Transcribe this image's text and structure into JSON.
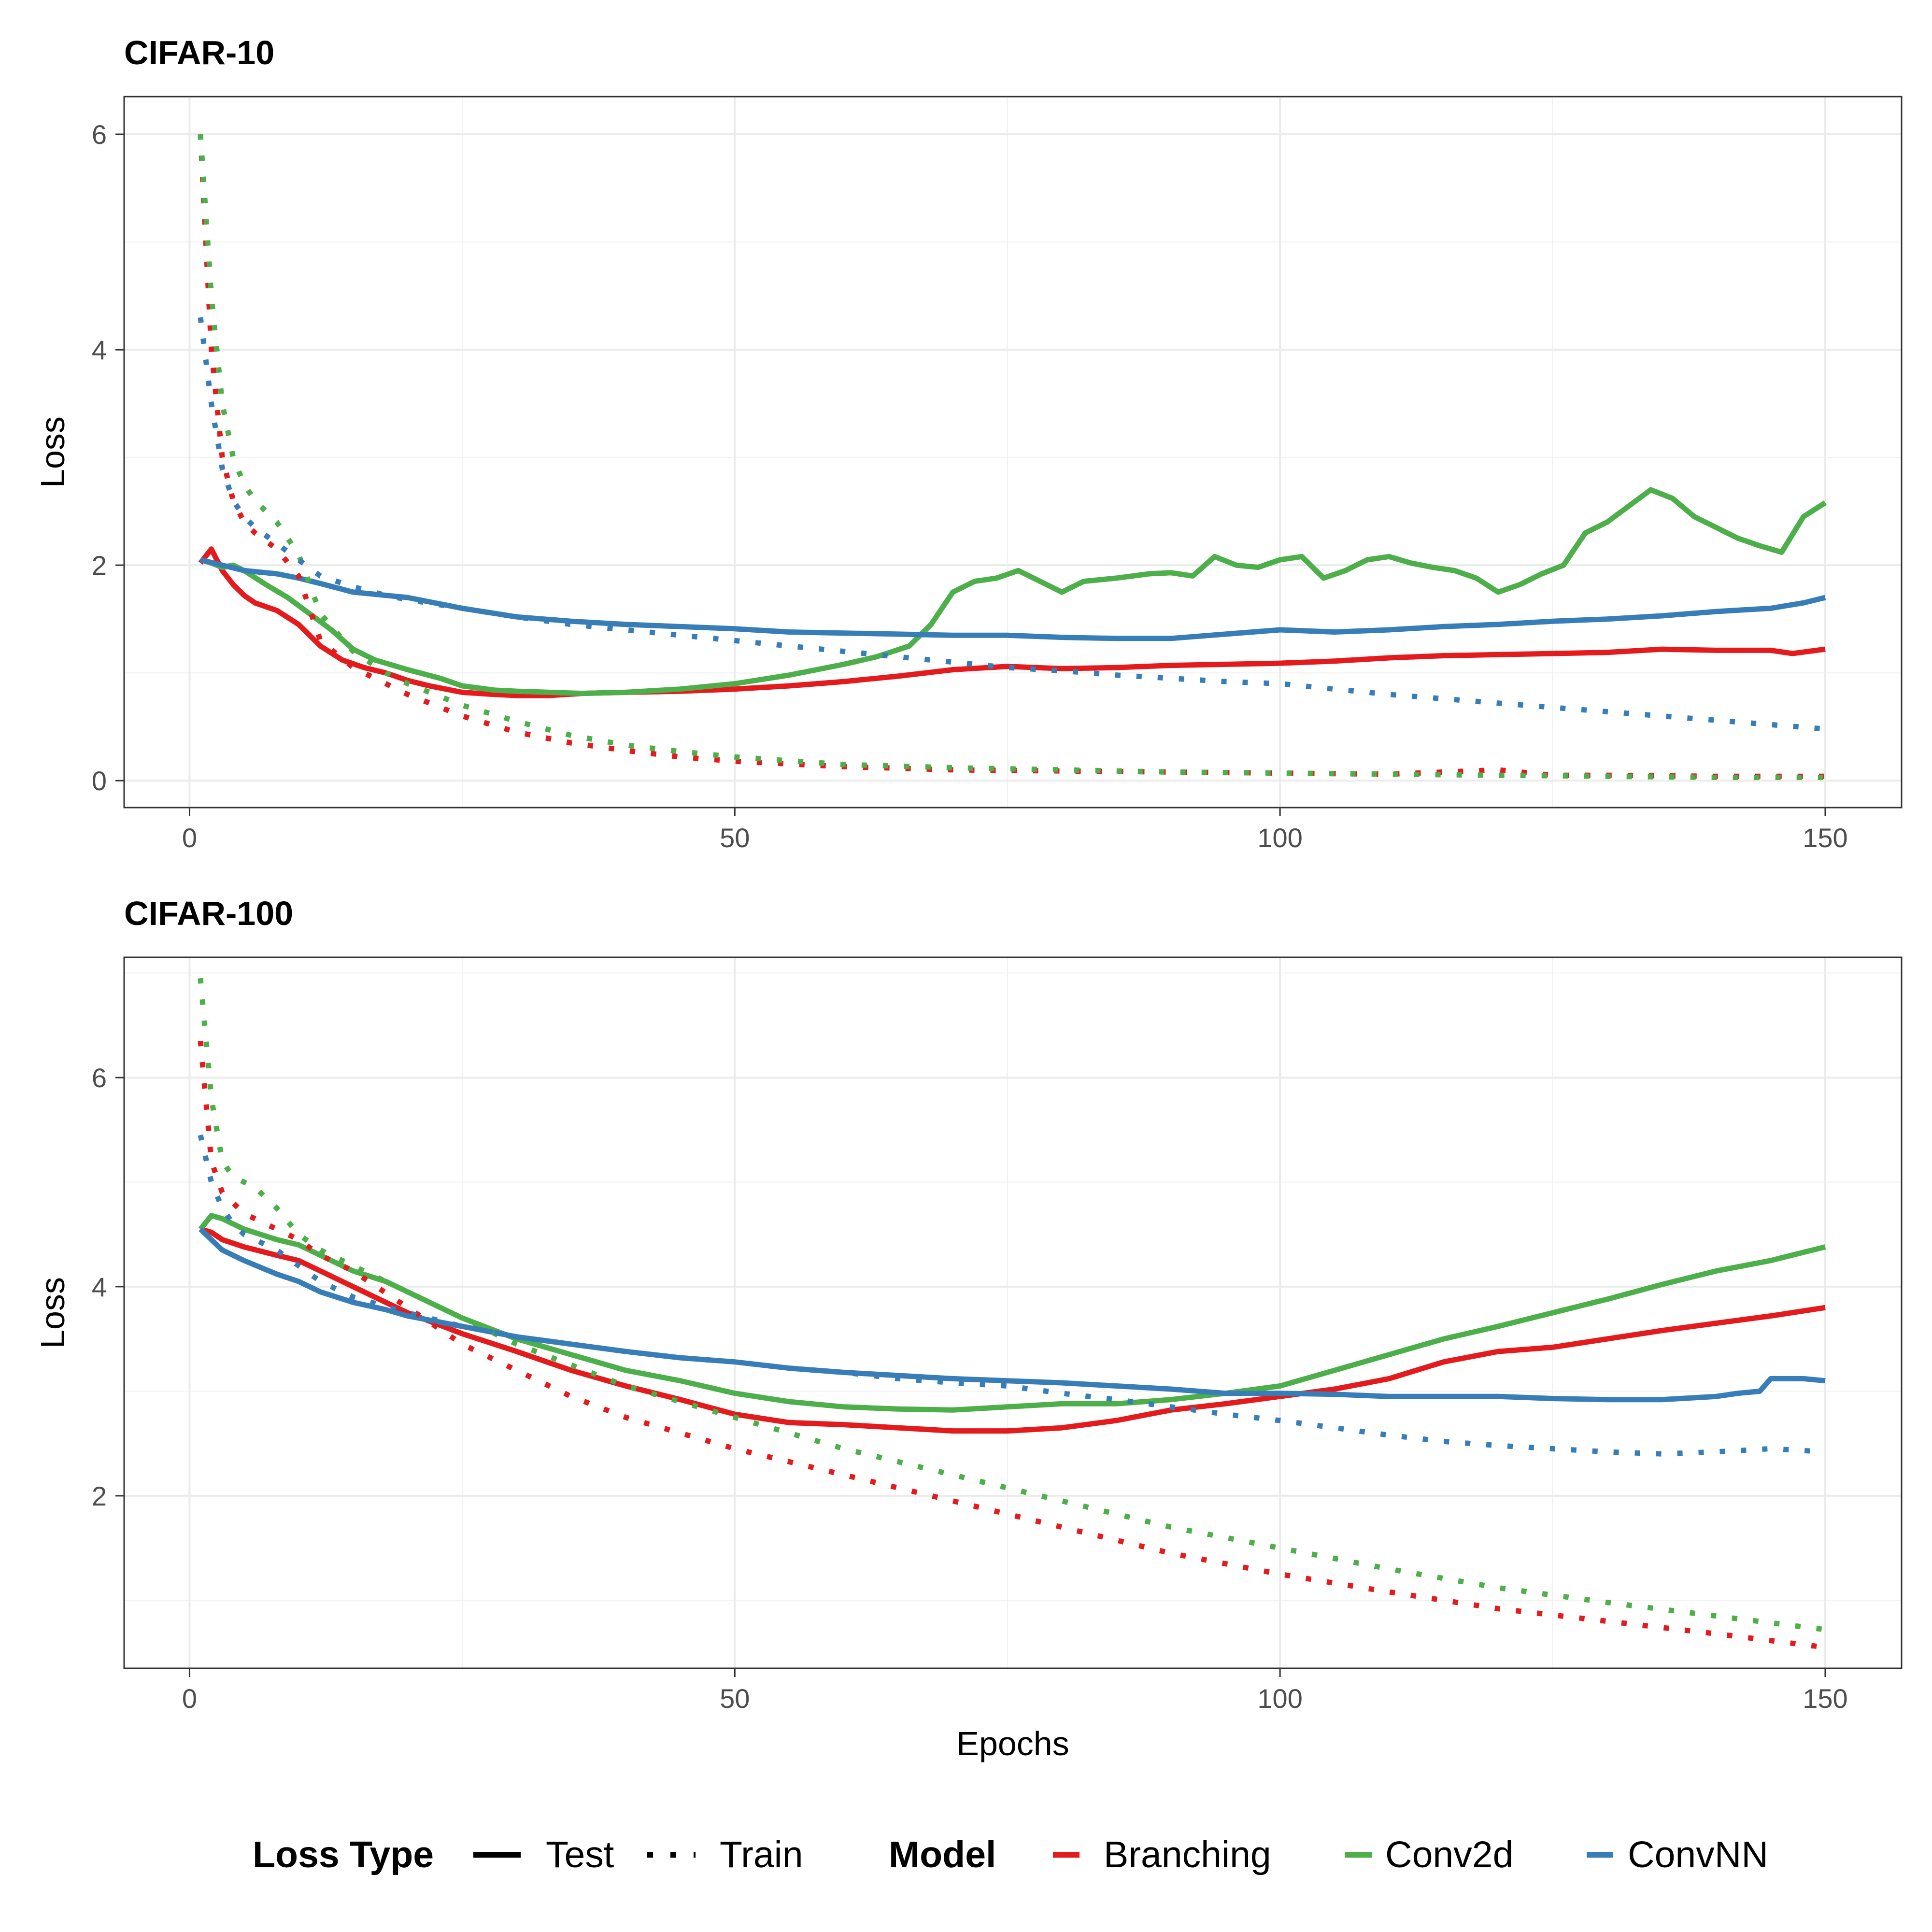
{
  "chart_data": [
    {
      "type": "line",
      "title": "CIFAR-10",
      "xlabel": "",
      "ylabel": "Loss",
      "xlim": [
        -6,
        157
      ],
      "ylim": [
        -0.25,
        6.35
      ],
      "xticks": [
        0,
        50,
        100,
        150
      ],
      "yticks": [
        0,
        2,
        4,
        6
      ],
      "grid": true,
      "series": [
        {
          "name": "Branching",
          "loss_type": "Test",
          "color": "#E41A1C",
          "x": [
            1,
            2,
            3,
            4,
            5,
            6,
            8,
            10,
            12,
            14,
            16,
            18,
            20,
            22,
            25,
            28,
            30,
            33,
            36,
            40,
            45,
            50,
            55,
            60,
            65,
            70,
            75,
            80,
            85,
            90,
            95,
            100,
            105,
            110,
            115,
            120,
            125,
            130,
            135,
            140,
            145,
            147,
            150
          ],
          "y": [
            2.02,
            2.15,
            1.95,
            1.82,
            1.72,
            1.65,
            1.58,
            1.45,
            1.25,
            1.12,
            1.05,
            1.0,
            0.93,
            0.88,
            0.82,
            0.8,
            0.79,
            0.79,
            0.81,
            0.82,
            0.83,
            0.85,
            0.88,
            0.92,
            0.97,
            1.03,
            1.06,
            1.04,
            1.05,
            1.07,
            1.08,
            1.09,
            1.11,
            1.14,
            1.16,
            1.17,
            1.18,
            1.19,
            1.22,
            1.21,
            1.21,
            1.18,
            1.22
          ]
        },
        {
          "name": "Conv2d",
          "loss_type": "Test",
          "color": "#4DAF4A",
          "x": [
            1,
            2,
            3,
            4,
            5,
            7,
            9,
            11,
            13,
            15,
            17,
            20,
            23,
            25,
            28,
            30,
            33,
            36,
            40,
            45,
            50,
            55,
            60,
            63,
            66,
            68,
            70,
            72,
            74,
            76,
            78,
            80,
            82,
            85,
            88,
            90,
            92,
            94,
            96,
            98,
            100,
            102,
            104,
            106,
            108,
            110,
            112,
            114,
            116,
            118,
            120,
            122,
            124,
            126,
            128,
            130,
            132,
            134,
            136,
            138,
            140,
            142,
            144,
            146,
            148,
            150
          ],
          "y": [
            2.05,
            2.02,
            1.98,
            2.0,
            1.95,
            1.82,
            1.7,
            1.55,
            1.4,
            1.22,
            1.12,
            1.03,
            0.95,
            0.88,
            0.84,
            0.83,
            0.82,
            0.81,
            0.82,
            0.85,
            0.9,
            0.98,
            1.08,
            1.15,
            1.25,
            1.45,
            1.75,
            1.85,
            1.88,
            1.95,
            1.85,
            1.75,
            1.85,
            1.88,
            1.92,
            1.93,
            1.9,
            2.08,
            2.0,
            1.98,
            2.05,
            2.08,
            1.88,
            1.95,
            2.05,
            2.08,
            2.02,
            1.98,
            1.95,
            1.88,
            1.75,
            1.82,
            1.92,
            2.0,
            2.3,
            2.4,
            2.55,
            2.7,
            2.62,
            2.45,
            2.35,
            2.25,
            2.18,
            2.12,
            2.45,
            2.58
          ]
        },
        {
          "name": "ConvNN",
          "loss_type": "Test",
          "color": "#377EB8",
          "x": [
            1,
            3,
            5,
            8,
            10,
            12,
            15,
            18,
            20,
            25,
            30,
            35,
            40,
            45,
            50,
            55,
            60,
            65,
            70,
            75,
            80,
            85,
            90,
            95,
            100,
            105,
            110,
            115,
            120,
            125,
            130,
            135,
            140,
            145,
            148,
            150
          ],
          "y": [
            2.05,
            2.0,
            1.95,
            1.92,
            1.88,
            1.83,
            1.75,
            1.72,
            1.7,
            1.6,
            1.52,
            1.48,
            1.45,
            1.43,
            1.41,
            1.38,
            1.37,
            1.36,
            1.35,
            1.35,
            1.33,
            1.32,
            1.32,
            1.36,
            1.4,
            1.38,
            1.4,
            1.43,
            1.45,
            1.48,
            1.5,
            1.53,
            1.57,
            1.6,
            1.65,
            1.7
          ]
        },
        {
          "name": "Branching",
          "loss_type": "Train",
          "color": "#E41A1C",
          "x": [
            1,
            2,
            3,
            4,
            5,
            6,
            8,
            10,
            12,
            15,
            18,
            20,
            25,
            30,
            35,
            40,
            45,
            50,
            60,
            70,
            80,
            90,
            100,
            110,
            115,
            120,
            125,
            130,
            140,
            150
          ],
          "y": [
            6.0,
            4.0,
            3.0,
            2.6,
            2.4,
            2.3,
            2.15,
            1.9,
            1.3,
            1.05,
            0.9,
            0.8,
            0.6,
            0.45,
            0.35,
            0.28,
            0.22,
            0.18,
            0.13,
            0.1,
            0.09,
            0.08,
            0.07,
            0.06,
            0.08,
            0.1,
            0.05,
            0.05,
            0.04,
            0.04
          ]
        },
        {
          "name": "Conv2d",
          "loss_type": "Train",
          "color": "#4DAF4A",
          "x": [
            1,
            2,
            3,
            4,
            5,
            6,
            8,
            10,
            12,
            15,
            18,
            20,
            25,
            30,
            35,
            40,
            45,
            50,
            60,
            70,
            80,
            90,
            100,
            110,
            120,
            130,
            140,
            150
          ],
          "y": [
            6.0,
            4.5,
            3.5,
            3.0,
            2.75,
            2.6,
            2.4,
            2.1,
            1.55,
            1.2,
            1.0,
            0.9,
            0.7,
            0.55,
            0.42,
            0.33,
            0.27,
            0.22,
            0.15,
            0.12,
            0.1,
            0.08,
            0.07,
            0.06,
            0.05,
            0.04,
            0.03,
            0.03
          ]
        },
        {
          "name": "ConvNN",
          "loss_type": "Train",
          "color": "#377EB8",
          "x": [
            1,
            2,
            3,
            4,
            5,
            6,
            8,
            10,
            12,
            15,
            18,
            20,
            25,
            30,
            35,
            40,
            45,
            50,
            55,
            60,
            65,
            70,
            75,
            80,
            85,
            90,
            95,
            100,
            105,
            110,
            115,
            120,
            125,
            130,
            135,
            140,
            145,
            150
          ],
          "y": [
            4.3,
            3.5,
            2.9,
            2.6,
            2.45,
            2.35,
            2.2,
            2.05,
            1.9,
            1.8,
            1.72,
            1.68,
            1.6,
            1.52,
            1.45,
            1.4,
            1.35,
            1.3,
            1.25,
            1.2,
            1.15,
            1.1,
            1.05,
            1.02,
            0.98,
            0.95,
            0.92,
            0.9,
            0.85,
            0.8,
            0.76,
            0.72,
            0.68,
            0.64,
            0.6,
            0.56,
            0.52,
            0.48
          ]
        }
      ]
    },
    {
      "type": "line",
      "title": "CIFAR-100",
      "xlabel": "Epochs",
      "ylabel": "Loss",
      "xlim": [
        -6,
        157
      ],
      "ylim": [
        0.35,
        7.15
      ],
      "xticks": [
        0,
        50,
        100,
        150
      ],
      "yticks": [
        2,
        4,
        6
      ],
      "grid": true,
      "series": [
        {
          "name": "Branching",
          "loss_type": "Test",
          "color": "#E41A1C",
          "x": [
            1,
            2,
            3,
            5,
            8,
            10,
            12,
            15,
            18,
            20,
            25,
            30,
            35,
            40,
            45,
            50,
            55,
            60,
            65,
            70,
            75,
            80,
            85,
            90,
            95,
            100,
            105,
            110,
            115,
            120,
            125,
            130,
            135,
            140,
            145,
            150
          ],
          "y": [
            4.55,
            4.52,
            4.45,
            4.38,
            4.3,
            4.25,
            4.15,
            4.0,
            3.85,
            3.75,
            3.55,
            3.38,
            3.2,
            3.05,
            2.92,
            2.78,
            2.7,
            2.68,
            2.65,
            2.62,
            2.62,
            2.65,
            2.72,
            2.82,
            2.88,
            2.95,
            3.02,
            3.12,
            3.28,
            3.38,
            3.42,
            3.5,
            3.58,
            3.65,
            3.72,
            3.8
          ]
        },
        {
          "name": "Conv2d",
          "loss_type": "Test",
          "color": "#4DAF4A",
          "x": [
            1,
            2,
            3,
            5,
            8,
            10,
            12,
            15,
            18,
            20,
            25,
            30,
            35,
            40,
            45,
            50,
            55,
            60,
            65,
            70,
            75,
            80,
            85,
            90,
            95,
            100,
            105,
            110,
            115,
            120,
            125,
            130,
            135,
            140,
            145,
            150
          ],
          "y": [
            4.55,
            4.68,
            4.65,
            4.55,
            4.45,
            4.4,
            4.3,
            4.15,
            4.05,
            3.95,
            3.7,
            3.5,
            3.35,
            3.2,
            3.1,
            2.98,
            2.9,
            2.85,
            2.83,
            2.82,
            2.85,
            2.88,
            2.88,
            2.92,
            2.98,
            3.05,
            3.2,
            3.35,
            3.5,
            3.62,
            3.75,
            3.88,
            4.02,
            4.15,
            4.25,
            4.38
          ]
        },
        {
          "name": "ConvNN",
          "loss_type": "Test",
          "color": "#377EB8",
          "x": [
            1,
            2,
            3,
            5,
            8,
            10,
            12,
            15,
            18,
            20,
            25,
            30,
            35,
            40,
            45,
            50,
            55,
            60,
            65,
            70,
            75,
            80,
            85,
            90,
            95,
            100,
            105,
            110,
            115,
            120,
            125,
            130,
            135,
            140,
            142,
            144,
            145,
            146,
            148,
            150
          ],
          "y": [
            4.55,
            4.45,
            4.35,
            4.25,
            4.12,
            4.05,
            3.95,
            3.85,
            3.78,
            3.72,
            3.62,
            3.52,
            3.45,
            3.38,
            3.32,
            3.28,
            3.22,
            3.18,
            3.15,
            3.12,
            3.1,
            3.08,
            3.05,
            3.02,
            2.98,
            2.98,
            2.97,
            2.95,
            2.95,
            2.95,
            2.93,
            2.92,
            2.92,
            2.95,
            2.98,
            3.0,
            3.12,
            3.12,
            3.12,
            3.1
          ]
        },
        {
          "name": "Branching",
          "loss_type": "Train",
          "color": "#E41A1C",
          "x": [
            1,
            2,
            3,
            4,
            5,
            6,
            8,
            10,
            12,
            15,
            20,
            25,
            30,
            35,
            40,
            50,
            60,
            70,
            80,
            90,
            100,
            110,
            120,
            130,
            140,
            150
          ],
          "y": [
            6.35,
            5.2,
            4.9,
            4.8,
            4.7,
            4.65,
            4.55,
            4.45,
            4.3,
            4.15,
            3.8,
            3.45,
            3.2,
            2.95,
            2.75,
            2.45,
            2.2,
            1.95,
            1.7,
            1.45,
            1.25,
            1.08,
            0.92,
            0.8,
            0.68,
            0.55
          ]
        },
        {
          "name": "Conv2d",
          "loss_type": "Train",
          "color": "#4DAF4A",
          "x": [
            1,
            2,
            3,
            4,
            5,
            6,
            8,
            10,
            12,
            15,
            20,
            25,
            30,
            35,
            40,
            50,
            60,
            70,
            80,
            90,
            100,
            110,
            120,
            130,
            140,
            150
          ],
          "y": [
            6.95,
            5.8,
            5.2,
            5.05,
            5.0,
            4.95,
            4.75,
            4.5,
            4.35,
            4.2,
            3.95,
            3.7,
            3.45,
            3.25,
            3.05,
            2.75,
            2.45,
            2.2,
            1.95,
            1.7,
            1.5,
            1.3,
            1.12,
            0.98,
            0.85,
            0.72
          ]
        },
        {
          "name": "ConvNN",
          "loss_type": "Train",
          "color": "#377EB8",
          "x": [
            1,
            2,
            3,
            4,
            5,
            6,
            8,
            10,
            12,
            15,
            20,
            25,
            30,
            35,
            40,
            45,
            50,
            55,
            60,
            65,
            70,
            75,
            80,
            85,
            90,
            95,
            100,
            105,
            110,
            115,
            120,
            125,
            130,
            135,
            140,
            145,
            150
          ],
          "y": [
            5.45,
            5.0,
            4.75,
            4.6,
            4.5,
            4.45,
            4.35,
            4.2,
            4.05,
            3.9,
            3.75,
            3.62,
            3.52,
            3.45,
            3.38,
            3.32,
            3.28,
            3.22,
            3.18,
            3.12,
            3.08,
            3.05,
            2.98,
            2.92,
            2.85,
            2.78,
            2.72,
            2.65,
            2.58,
            2.52,
            2.48,
            2.45,
            2.42,
            2.4,
            2.42,
            2.45,
            2.42
          ]
        }
      ]
    }
  ],
  "legend": {
    "placement": "bottom",
    "loss_type": {
      "title": "Loss Type",
      "items": [
        {
          "label": "Test"
        },
        {
          "label": "Train"
        }
      ]
    },
    "model": {
      "title": "Model",
      "items": [
        {
          "label": "Branching",
          "color": "#E41A1C"
        },
        {
          "label": "Conv2d",
          "color": "#4DAF4A"
        },
        {
          "label": "ConvNN",
          "color": "#377EB8"
        }
      ]
    }
  }
}
